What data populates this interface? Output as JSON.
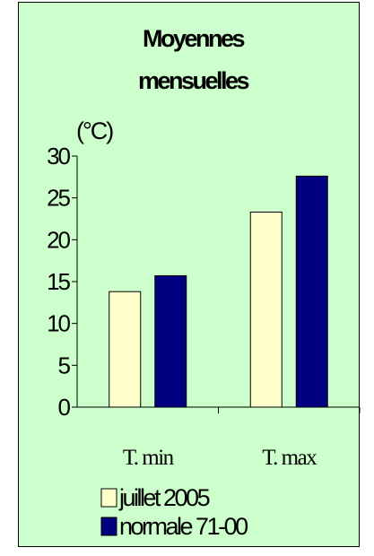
{
  "chart_data": {
    "type": "bar",
    "title_lines": [
      "Moyennes",
      "mensuelles"
    ],
    "ylabel": "(°C)",
    "categories": [
      "T. min",
      "T. max"
    ],
    "series": [
      {
        "name": "juillet 2005",
        "values": [
          13.8,
          23.3
        ],
        "color": "#ffffcc"
      },
      {
        "name": "normale 71-00",
        "values": [
          15.7,
          27.6
        ],
        "color": "#000080"
      }
    ],
    "ylim": [
      0,
      30
    ],
    "yticks": [
      0,
      5,
      10,
      15,
      20,
      25,
      30
    ],
    "grid": false,
    "legend": "bottom-left",
    "background": "#ccffcc"
  }
}
